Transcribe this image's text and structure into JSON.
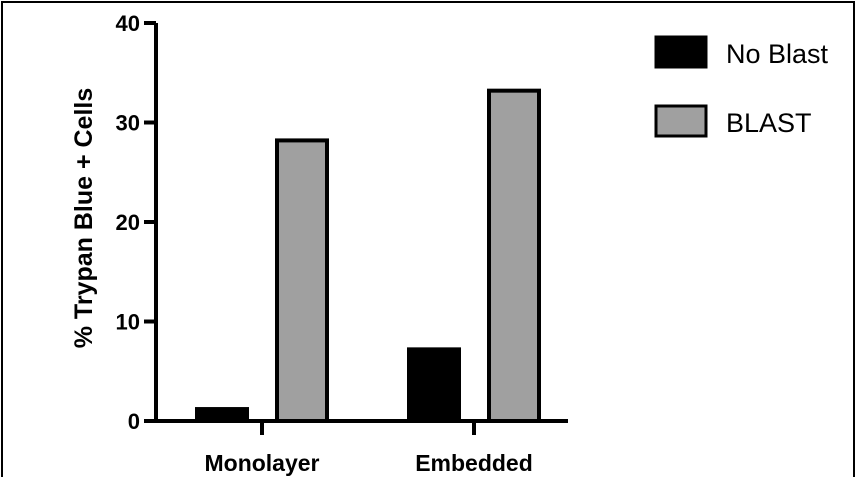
{
  "chart_data": {
    "type": "bar",
    "title": "",
    "xlabel": "",
    "ylabel": "% Trypan Blue + Cells",
    "categories": [
      "Monolayer",
      "Embedded"
    ],
    "series": [
      {
        "name": "No Blast",
        "values": [
          1.2,
          7.2
        ],
        "color": "#000000"
      },
      {
        "name": "BLAST",
        "values": [
          28.2,
          33.2
        ],
        "color": "#a0a0a0"
      }
    ],
    "ylim": [
      0,
      40
    ],
    "yticks": [
      0,
      10,
      20,
      30,
      40
    ],
    "grid": false,
    "legend_position": "top-right"
  }
}
